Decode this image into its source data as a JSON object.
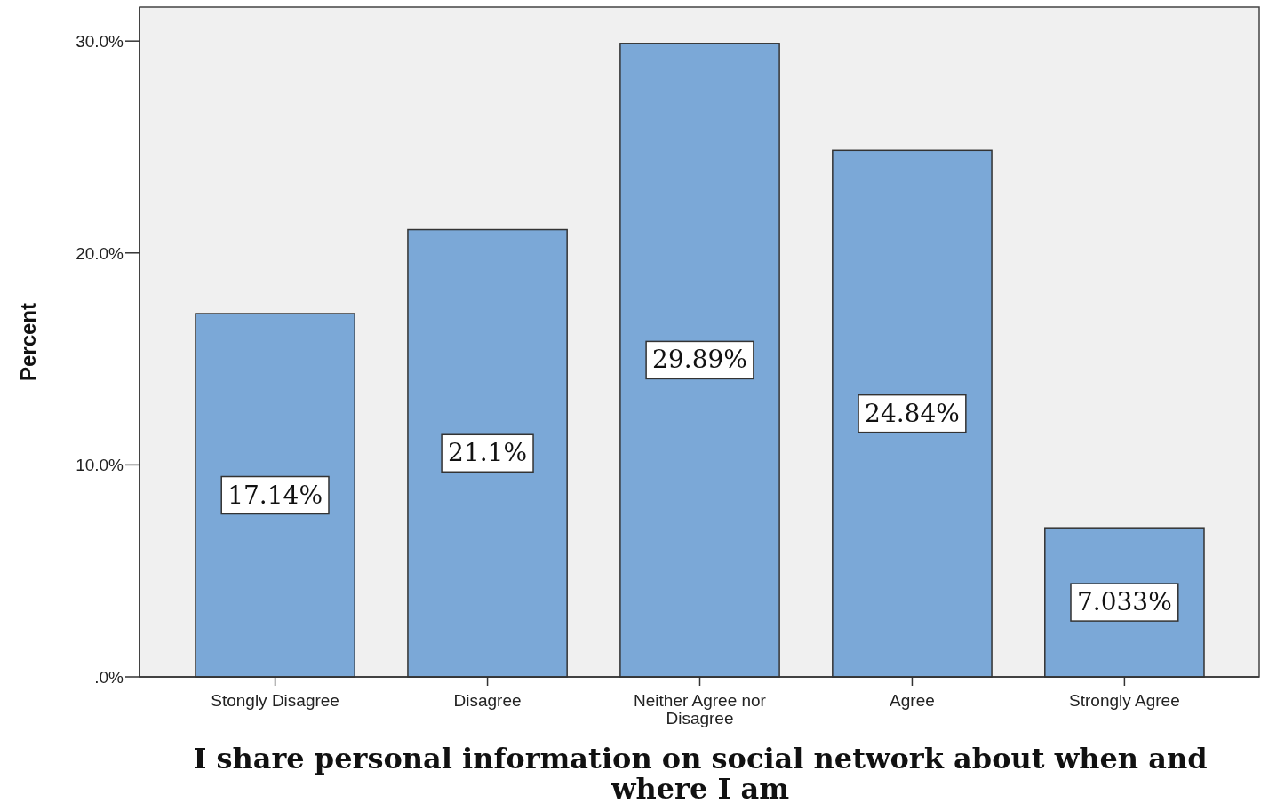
{
  "chart_data": {
    "type": "bar",
    "xlabel": "I share personal information on social network about when and where I am",
    "ylabel": "Percent",
    "categories": [
      "Stongly Disagree",
      "Disagree",
      "Neither Agree nor Disagree",
      "Agree",
      "Strongly Agree"
    ],
    "values": [
      17.14,
      21.1,
      29.89,
      24.84,
      7.033
    ],
    "value_labels": [
      "17.14%",
      "21.1%",
      "29.89%",
      "24.84%",
      "7.033%"
    ],
    "color": "#7ba8d7",
    "ylim": [
      0,
      31.6
    ],
    "yticks": [
      {
        "value": 0,
        "label": ".0%"
      },
      {
        "value": 10,
        "label": "10.0%"
      },
      {
        "value": 20,
        "label": "20.0%"
      },
      {
        "value": 30,
        "label": "30.0%"
      }
    ],
    "grid": false
  }
}
